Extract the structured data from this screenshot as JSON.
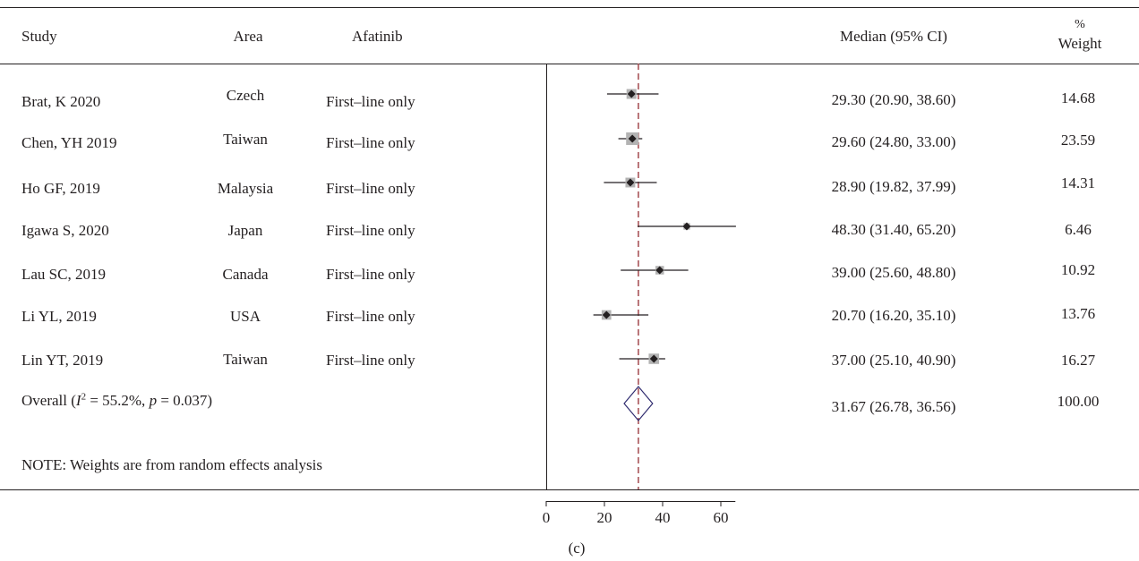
{
  "header": {
    "study": "Study",
    "area": "Area",
    "afatinib": "Afatinib",
    "median": "Median (95% CI)",
    "weight_top": "%",
    "weight_bottom": "Weight"
  },
  "rows": [
    {
      "study": "Brat, K 2020",
      "area": "Czech",
      "afatinib": "First–line only",
      "ci": "29.30 (20.90, 38.60)",
      "weight": "14.68"
    },
    {
      "study": "Chen, YH 2019",
      "area": "Taiwan",
      "afatinib": "First–line only",
      "ci": "29.60 (24.80, 33.00)",
      "weight": "23.59"
    },
    {
      "study": "Ho GF, 2019",
      "area": "Malaysia",
      "afatinib": "First–line only",
      "ci": "28.90 (19.82, 37.99)",
      "weight": "14.31"
    },
    {
      "study": "Igawa S, 2020",
      "area": "Japan",
      "afatinib": "First–line only",
      "ci": "48.30 (31.40, 65.20)",
      "weight": "6.46"
    },
    {
      "study": "Lau SC, 2019",
      "area": "Canada",
      "afatinib": "First–line only",
      "ci": "39.00 (25.60, 48.80)",
      "weight": "10.92"
    },
    {
      "study": "Li YL, 2019",
      "area": "USA",
      "afatinib": "First–line only",
      "ci": "20.70 (16.20, 35.10)",
      "weight": "13.76"
    },
    {
      "study": "Lin YT, 2019",
      "area": "Taiwan",
      "afatinib": "First–line only",
      "ci": "37.00 (25.10, 40.90)",
      "weight": "16.27"
    }
  ],
  "overall": {
    "label_prefix": "Overall (",
    "i2_symbol": "I",
    "i2_sup": "2",
    "i2_value": " = 55.2%, ",
    "p_symbol": "p",
    "p_value": " = 0.037)",
    "ci": "31.67 (26.78, 36.56)",
    "weight": "100.00"
  },
  "note": "NOTE: Weights are from random effects analysis",
  "panel_label": "(c)",
  "colors": {
    "ink": "#231f20",
    "box": "#b3b3b3",
    "diamond": "#2e2a6e",
    "reference_line": "#a3484d"
  },
  "chart_data": {
    "type": "forest",
    "x_ticks": [
      "0",
      "20",
      "40",
      "60"
    ],
    "xlim": [
      0,
      65
    ],
    "reference_value": 31.67,
    "studies": [
      {
        "label": "Brat, K 2020",
        "estimate": 29.3,
        "lower": 20.9,
        "upper": 38.6,
        "weight": 14.68
      },
      {
        "label": "Chen, YH 2019",
        "estimate": 29.6,
        "lower": 24.8,
        "upper": 33.0,
        "weight": 23.59
      },
      {
        "label": "Ho GF, 2019",
        "estimate": 28.9,
        "lower": 19.82,
        "upper": 37.99,
        "weight": 14.31
      },
      {
        "label": "Igawa S, 2020",
        "estimate": 48.3,
        "lower": 31.4,
        "upper": 65.2,
        "weight": 6.46
      },
      {
        "label": "Lau SC, 2019",
        "estimate": 39.0,
        "lower": 25.6,
        "upper": 48.8,
        "weight": 10.92
      },
      {
        "label": "Li YL, 2019",
        "estimate": 20.7,
        "lower": 16.2,
        "upper": 35.1,
        "weight": 13.76
      },
      {
        "label": "Lin YT, 2019",
        "estimate": 37.0,
        "lower": 25.1,
        "upper": 40.9,
        "weight": 16.27
      }
    ],
    "overall": {
      "estimate": 31.67,
      "lower": 26.78,
      "upper": 36.56
    }
  }
}
